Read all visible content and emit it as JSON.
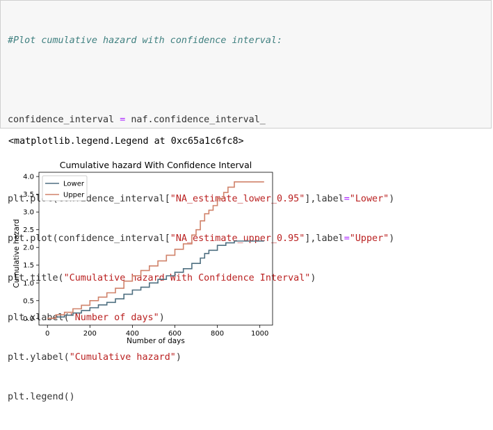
{
  "code_cell": {
    "comment": "#Plot cumulative hazard with confidence interval:",
    "line_ci": {
      "lhs": "confidence_interval",
      "op": " = ",
      "rhs": "naf.confidence_interval_"
    },
    "line_plot_lower": {
      "pre": "plt.plot(confidence_interval[",
      "key": "\"NA_estimate_lower_0.95\"",
      "mid": "],label",
      "eq": "=",
      "label": "\"Lower\"",
      "post": ")"
    },
    "line_plot_upper": {
      "pre": "plt.plot(confidence_interval[",
      "key": "\"NA_estimate_upper_0.95\"",
      "mid": "],label",
      "eq": "=",
      "label": "\"Upper\"",
      "post": ")"
    },
    "line_title": {
      "pre": "plt.title(",
      "arg": "\"Cumulative hazard With Confidence Interval\"",
      "post": ")"
    },
    "line_xlabel": {
      "pre": "plt.xlabel(",
      "arg": "\"Number of days\"",
      "post": ")"
    },
    "line_ylabel": {
      "pre": "plt.ylabel(",
      "arg": "\"Cumulative hazard\"",
      "post": ")"
    },
    "line_legend": "plt.legend()"
  },
  "output_text": "<matplotlib.legend.Legend at 0xc65a1c6fc8>",
  "chart_data": {
    "type": "line",
    "title": "Cumulative hazard With Confidence Interval",
    "xlabel": "Number of days",
    "ylabel": "Cumulative hazard",
    "xlim": [
      -40,
      1060
    ],
    "ylim": [
      -0.19,
      4.12
    ],
    "xticks": [
      0,
      200,
      400,
      600,
      800,
      1000
    ],
    "yticks": [
      0.0,
      0.5,
      1.0,
      1.5,
      2.0,
      2.5,
      3.0,
      3.5,
      4.0
    ],
    "grid": false,
    "legend_position": "top-left",
    "series": [
      {
        "name": "Lower",
        "color": "#4e6f80",
        "x": [
          0,
          40,
          80,
          120,
          160,
          200,
          240,
          280,
          320,
          360,
          400,
          440,
          480,
          520,
          560,
          600,
          640,
          680,
          720,
          740,
          760,
          800,
          840,
          880,
          900,
          960,
          1020
        ],
        "y": [
          0.0,
          0.04,
          0.09,
          0.15,
          0.22,
          0.3,
          0.38,
          0.45,
          0.55,
          0.68,
          0.8,
          0.88,
          1.0,
          1.1,
          1.2,
          1.3,
          1.4,
          1.55,
          1.7,
          1.83,
          1.92,
          2.06,
          2.13,
          2.18,
          2.18,
          2.18,
          2.18
        ]
      },
      {
        "name": "Upper",
        "color": "#d0826a",
        "x": [
          0,
          40,
          80,
          120,
          160,
          200,
          240,
          280,
          320,
          360,
          400,
          440,
          480,
          520,
          560,
          600,
          640,
          680,
          700,
          720,
          740,
          760,
          780,
          800,
          830,
          850,
          880,
          960,
          1020
        ],
        "y": [
          0.0,
          0.1,
          0.17,
          0.27,
          0.37,
          0.5,
          0.6,
          0.72,
          0.85,
          1.05,
          1.2,
          1.35,
          1.48,
          1.62,
          1.78,
          1.95,
          2.1,
          2.35,
          2.5,
          2.75,
          2.95,
          3.05,
          3.18,
          3.38,
          3.55,
          3.7,
          3.85,
          3.85,
          3.85
        ]
      }
    ]
  }
}
